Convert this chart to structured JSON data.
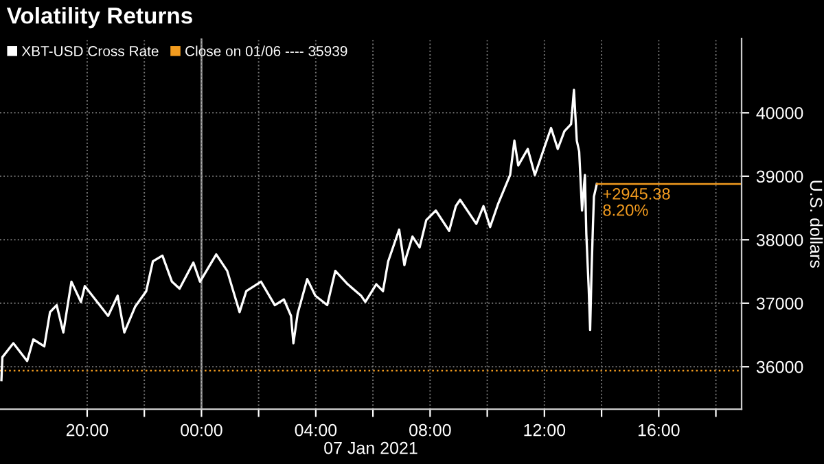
{
  "chart_data": {
    "type": "line",
    "title": "Volatility Returns",
    "xlabel": "07 Jan 2021",
    "ylabel": "U.S. dollars",
    "series": [
      {
        "name": "XBT-USD Cross Rate",
        "color": "#ffffff",
        "x": [
          "2021-01-06T17:00",
          "2021-01-06T17:02",
          "2021-01-06T17:25",
          "2021-01-06T17:54",
          "2021-01-06T18:07",
          "2021-01-06T18:30",
          "2021-01-06T18:42",
          "2021-01-06T18:56",
          "2021-01-06T19:10",
          "2021-01-06T19:27",
          "2021-01-06T19:47",
          "2021-01-06T19:55",
          "2021-01-06T20:44",
          "2021-01-06T21:04",
          "2021-01-06T21:18",
          "2021-01-06T21:41",
          "2021-01-06T22:04",
          "2021-01-06T22:18",
          "2021-01-06T22:38",
          "2021-01-06T22:58",
          "2021-01-06T23:14",
          "2021-01-06T23:43",
          "2021-01-06T23:57",
          "2021-01-07T00:31",
          "2021-01-07T00:54",
          "2021-01-07T01:20",
          "2021-01-07T01:34",
          "2021-01-07T02:05",
          "2021-01-07T02:34",
          "2021-01-07T02:53",
          "2021-01-07T03:08",
          "2021-01-07T03:13",
          "2021-01-07T03:22",
          "2021-01-07T03:42",
          "2021-01-07T03:59",
          "2021-01-07T04:24",
          "2021-01-07T04:41",
          "2021-01-07T05:07",
          "2021-01-07T05:35",
          "2021-01-07T05:44",
          "2021-01-07T06:07",
          "2021-01-07T06:21",
          "2021-01-07T06:32",
          "2021-01-07T06:55",
          "2021-01-07T07:06",
          "2021-01-07T07:10",
          "2021-01-07T07:23",
          "2021-01-07T07:38",
          "2021-01-07T07:52",
          "2021-01-07T08:12",
          "2021-01-07T08:40",
          "2021-01-07T08:54",
          "2021-01-07T09:03",
          "2021-01-07T09:37",
          "2021-01-07T09:52",
          "2021-01-07T10:06",
          "2021-01-07T10:23",
          "2021-01-07T10:48",
          "2021-01-07T10:57",
          "2021-01-07T11:05",
          "2021-01-07T11:25",
          "2021-01-07T11:40",
          "2021-01-07T12:02",
          "2021-01-07T12:14",
          "2021-01-07T12:28",
          "2021-01-07T12:42",
          "2021-01-07T12:56",
          "2021-01-07T13:02",
          "2021-01-07T13:08",
          "2021-01-07T13:13",
          "2021-01-07T13:19",
          "2021-01-07T13:25",
          "2021-01-07T13:28",
          "2021-01-07T13:33",
          "2021-01-07T13:36",
          "2021-01-07T13:39",
          "2021-01-07T13:42",
          "2021-01-07T13:44",
          "2021-01-07T13:50"
        ],
        "values": [
          35790,
          36150,
          36370,
          36090,
          36430,
          36320,
          36860,
          36970,
          36540,
          37340,
          37020,
          37270,
          36800,
          37120,
          36540,
          36950,
          37190,
          37660,
          37750,
          37340,
          37230,
          37640,
          37340,
          37770,
          37510,
          36860,
          37190,
          37340,
          36970,
          37060,
          36800,
          36370,
          36840,
          37380,
          37120,
          36970,
          37510,
          37300,
          37120,
          37020,
          37300,
          37190,
          37660,
          38160,
          37600,
          37730,
          38050,
          37880,
          38310,
          38460,
          38140,
          38530,
          38630,
          38250,
          38530,
          38200,
          38570,
          39020,
          39560,
          39170,
          39430,
          39020,
          39500,
          39760,
          39430,
          39710,
          39820,
          40360,
          39560,
          39390,
          38460,
          39020,
          38090,
          37230,
          36580,
          37510,
          38250,
          38680,
          38880
        ]
      }
    ],
    "ref_lines": [
      {
        "axis": "y",
        "value": 35939,
        "label": "Close on 01/06 ---- 35939",
        "color": "#f39c1f",
        "line_style": "dotted"
      },
      {
        "axis": "x",
        "value": "2021-01-07T00:00",
        "color": "#aaaaaa",
        "line_style": "solid"
      }
    ],
    "annotations": [
      {
        "text": "+2945.38\n8.20%",
        "x": "2021-01-07T13:50",
        "y": 38880
      }
    ],
    "xlim": [
      "2021-01-06T16:57",
      "2021-01-07T18:54"
    ],
    "xticks": [
      {
        "value": "2021-01-06T20:00",
        "label": "20:00"
      },
      {
        "value": "2021-01-06T22:00",
        "label": null
      },
      {
        "value": "2021-01-07T00:00",
        "label": "00:00"
      },
      {
        "value": "2021-01-07T02:00",
        "label": null
      },
      {
        "value": "2021-01-07T04:00",
        "label": "04:00"
      },
      {
        "value": "2021-01-07T06:00",
        "label": null
      },
      {
        "value": "2021-01-07T08:00",
        "label": "08:00"
      },
      {
        "value": "2021-01-07T10:00",
        "label": null
      },
      {
        "value": "2021-01-07T12:00",
        "label": "12:00"
      },
      {
        "value": "2021-01-07T14:00",
        "label": null
      },
      {
        "value": "2021-01-07T16:00",
        "label": "16:00"
      },
      {
        "value": "2021-01-07T18:00",
        "label": null
      }
    ],
    "ylim": [
      35330,
      41170
    ],
    "yticks": [
      36000,
      37000,
      38000,
      39000,
      40000
    ],
    "grid": true,
    "legend": "top left",
    "marker": "none",
    "line_style": "solid"
  }
}
